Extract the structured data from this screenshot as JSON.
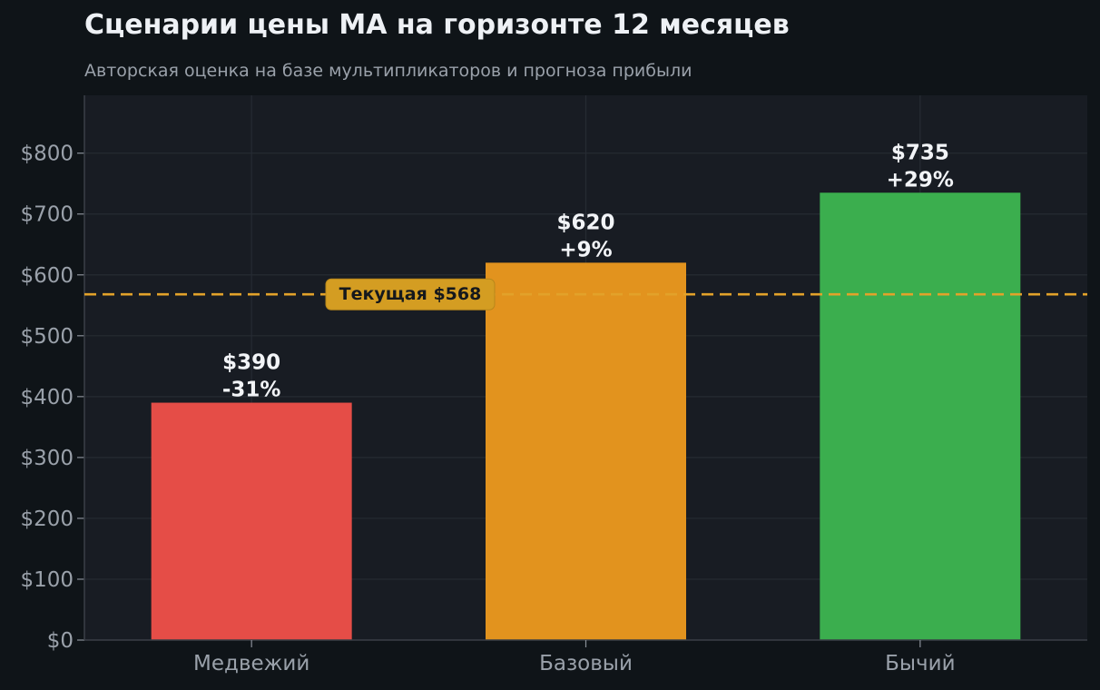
{
  "chart_data": {
    "type": "bar",
    "title": "Сценарии цены MA на горизонте 12 месяцев",
    "subtitle": "Авторская оценка на базе мультипликаторов и прогноза прибыли",
    "categories": [
      "Медвежий",
      "Базовый",
      "Бычий"
    ],
    "values": [
      390,
      620,
      735
    ],
    "value_labels": [
      "$390",
      "$620",
      "$735"
    ],
    "change_labels": [
      "-31%",
      "+9%",
      "+29%"
    ],
    "bar_colors": [
      "#e54d47",
      "#e2931e",
      "#3bae4e"
    ],
    "ylim": [
      0,
      895
    ],
    "yticks": [
      0,
      100,
      200,
      300,
      400,
      500,
      600,
      700,
      800
    ],
    "ytick_labels": [
      "$0",
      "$100",
      "$200",
      "$300",
      "$400",
      "$500",
      "$600",
      "$700",
      "$800"
    ],
    "reference_line": {
      "value": 568,
      "label": "Текущая $568",
      "color": "#e2a22a",
      "style": "dashed"
    },
    "grid": true,
    "legend": "none",
    "xlabel": "",
    "ylabel": ""
  }
}
